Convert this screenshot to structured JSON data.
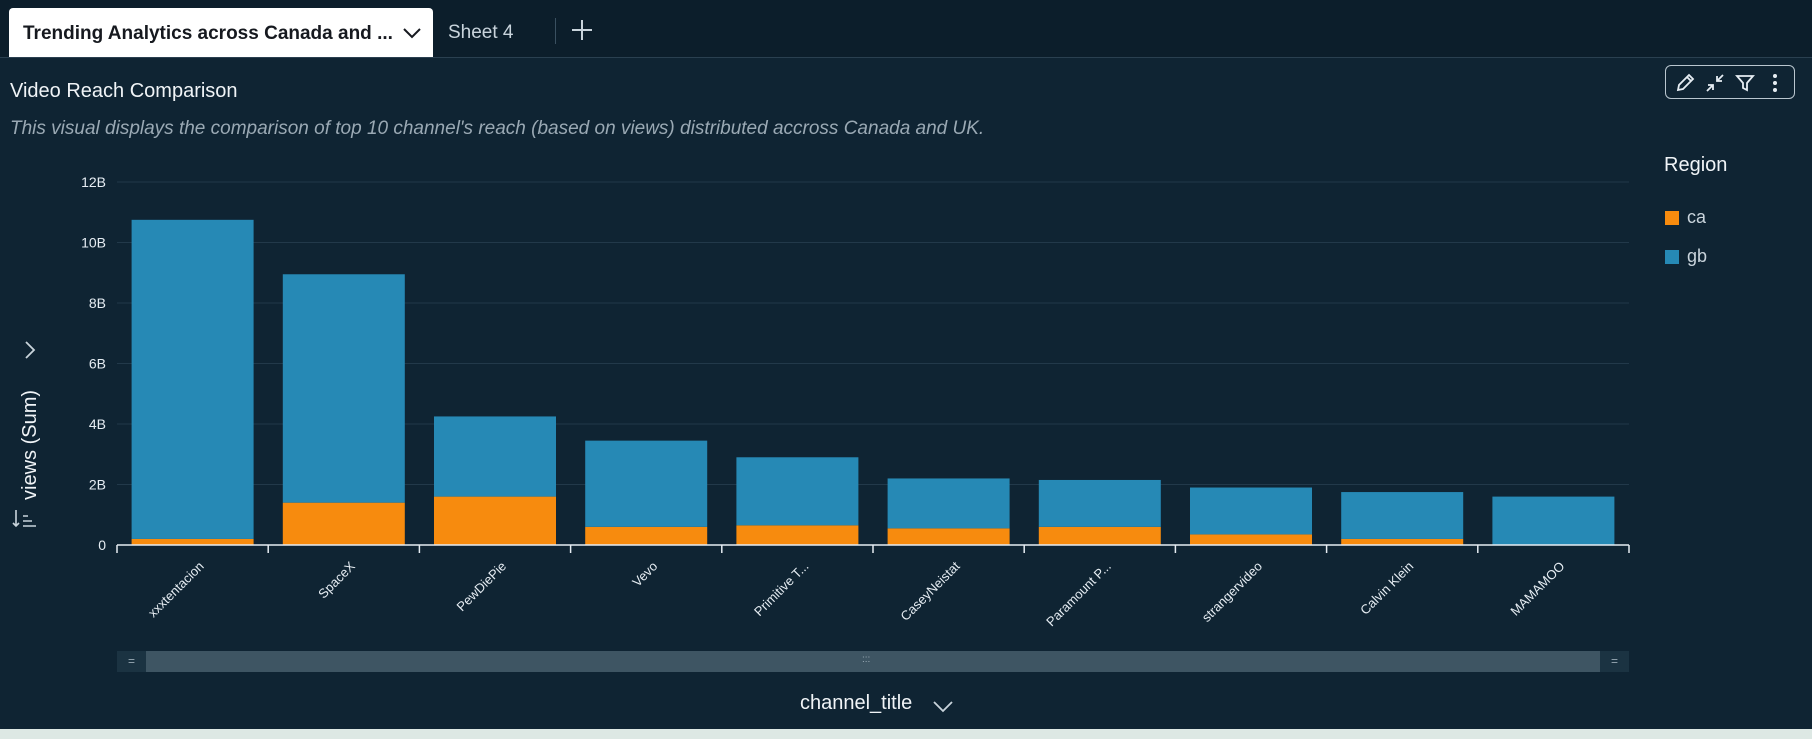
{
  "tabs": {
    "active_label": "Trending Analytics across Canada and ...",
    "second_label": "Sheet 4"
  },
  "visual": {
    "title": "Video Reach Comparison",
    "subtitle": "This visual displays the comparison of top 10 channel's reach (based on views) distributed accross Canada and UK."
  },
  "legend": {
    "title": "Region",
    "items": [
      {
        "label": "ca",
        "color": "#f78b0e"
      },
      {
        "label": "gb",
        "color": "#2689b5"
      }
    ]
  },
  "chart_data": {
    "type": "bar",
    "stacked": true,
    "categories": [
      "xxxtentacion",
      "SpaceX",
      "PewDiePie",
      "Vevo",
      "Primitive T...",
      "CaseyNeistat",
      "Paramount P...",
      "strangervideo",
      "Calvin Klein",
      "MAMAMOO"
    ],
    "series": [
      {
        "name": "ca",
        "color": "#f78b0e",
        "values": [
          0.2,
          1.4,
          1.6,
          0.6,
          0.65,
          0.55,
          0.6,
          0.35,
          0.2,
          0.0
        ]
      },
      {
        "name": "gb",
        "color": "#2689b5",
        "values": [
          10.55,
          7.55,
          2.65,
          2.85,
          2.25,
          1.65,
          1.55,
          1.55,
          1.55,
          1.6
        ]
      }
    ],
    "ylabel": "views (Sum)",
    "xlabel": "channel_title",
    "ylim": [
      0,
      12
    ],
    "yticks": [
      "0",
      "2B",
      "4B",
      "6B",
      "8B",
      "10B",
      "12B"
    ],
    "grid": true,
    "legend_position": "right"
  }
}
